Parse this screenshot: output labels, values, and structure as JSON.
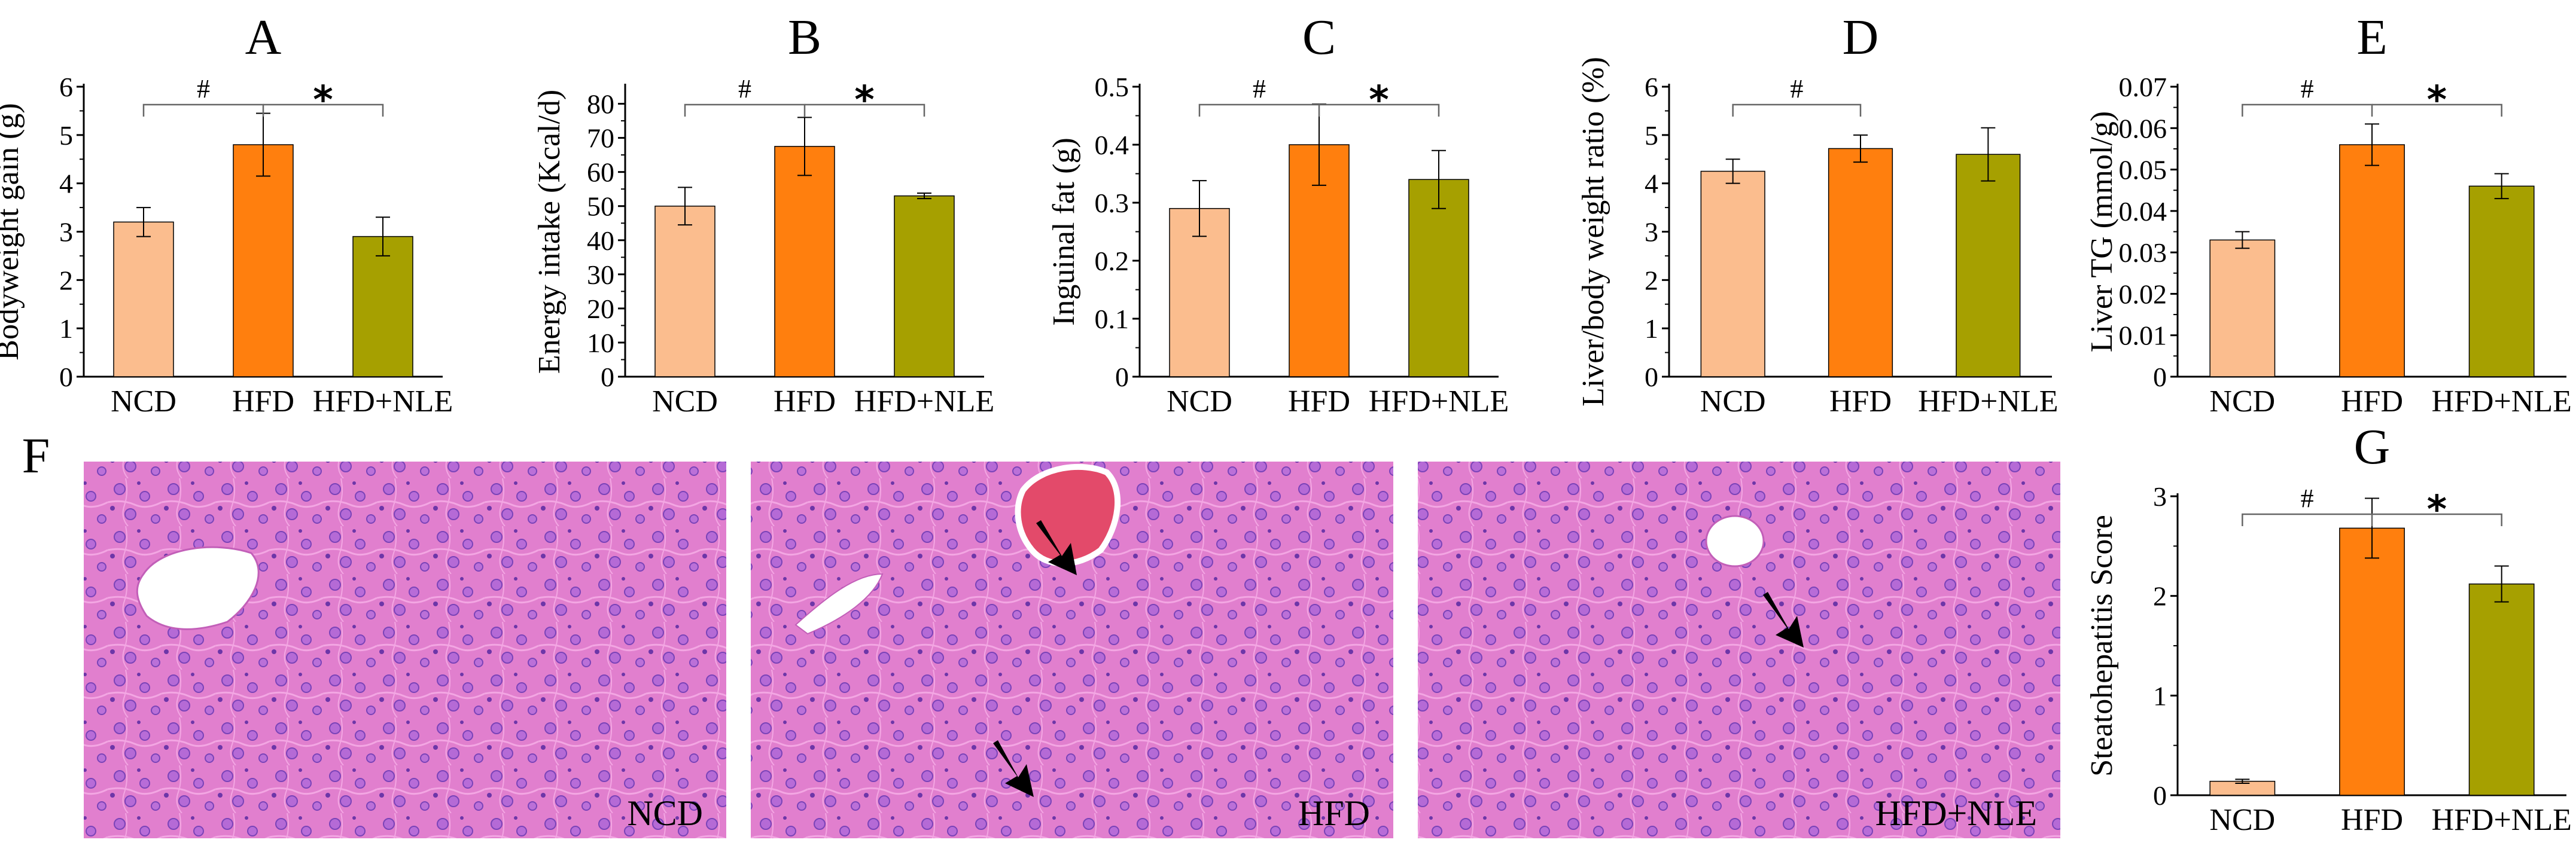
{
  "colors": {
    "NCD": "#fbbd8e",
    "HFD": "#ff7f0e",
    "HFD+NLE": "#a6a000",
    "axis": "#000000",
    "bracket": "#666666",
    "tissue": "#e47fd0"
  },
  "micrographs": [
    {
      "letter": "F",
      "label": "NCD"
    },
    {
      "label": "HFD"
    },
    {
      "label": "HFD+NLE"
    }
  ],
  "chart_data": [
    {
      "type": "bar",
      "letter": "A",
      "ylabel": "Bodyweight gain (g)",
      "categories": [
        "NCD",
        "HFD",
        "HFD+NLE"
      ],
      "values": [
        3.2,
        4.8,
        2.9
      ],
      "errors": [
        0.3,
        0.65,
        0.4
      ],
      "ylim": [
        0,
        6
      ],
      "yticks": [
        "0",
        "1",
        "2",
        "3",
        "4",
        "5",
        "6"
      ],
      "significance": {
        "hash": "#",
        "star": "*"
      }
    },
    {
      "type": "bar",
      "letter": "B",
      "ylabel": "Energy intake (Kcal/d)",
      "categories": [
        "NCD",
        "HFD",
        "HFD+NLE"
      ],
      "values": [
        50,
        67.5,
        53
      ],
      "errors": [
        5.5,
        8.5,
        0.8
      ],
      "ylim": [
        0,
        85
      ],
      "yticks": [
        "0",
        "10",
        "20",
        "30",
        "40",
        "50",
        "60",
        "70",
        "80"
      ],
      "significance": {
        "hash": "#",
        "star": "*"
      }
    },
    {
      "type": "bar",
      "letter": "C",
      "ylabel": "Inguinal fat (g)",
      "categories": [
        "NCD",
        "HFD",
        "HFD+NLE"
      ],
      "values": [
        0.29,
        0.4,
        0.34
      ],
      "errors": [
        0.048,
        0.07,
        0.05
      ],
      "ylim": [
        0,
        0.5
      ],
      "yticks": [
        "0",
        "0.1",
        "0.2",
        "0.3",
        "0.4",
        "0.5"
      ],
      "significance": {
        "hash": "#",
        "star": "*"
      }
    },
    {
      "type": "bar",
      "letter": "D",
      "ylabel": "Liver/body weight ratio (%)",
      "categories": [
        "NCD",
        "HFD",
        "HFD+NLE"
      ],
      "values": [
        4.25,
        4.72,
        4.6
      ],
      "errors": [
        0.25,
        0.28,
        0.55
      ],
      "ylim": [
        0,
        6
      ],
      "yticks": [
        "0",
        "1",
        "2",
        "3",
        "4",
        "5",
        "6"
      ],
      "significance": {
        "hash": "#"
      }
    },
    {
      "type": "bar",
      "letter": "E",
      "ylabel": "Liver TG (mmol/g)",
      "categories": [
        "NCD",
        "HFD",
        "HFD+NLE"
      ],
      "values": [
        0.033,
        0.056,
        0.046
      ],
      "errors": [
        0.002,
        0.005,
        0.003
      ],
      "ylim": [
        0,
        0.07
      ],
      "yticks": [
        "0",
        "0.01",
        "0.02",
        "0.03",
        "0.04",
        "0.05",
        "0.06",
        "0.07"
      ],
      "significance": {
        "hash": "#",
        "star": "*"
      }
    },
    {
      "type": "bar",
      "letter": "G",
      "ylabel": "Steatohepatitis Score",
      "categories": [
        "NCD",
        "HFD",
        "HFD+NLE"
      ],
      "values": [
        0.14,
        2.68,
        2.12
      ],
      "errors": [
        0.02,
        0.3,
        0.18
      ],
      "ylim": [
        0,
        3
      ],
      "yticks": [
        "0",
        "1",
        "2",
        "3"
      ],
      "significance": {
        "hash": "#",
        "star": "*"
      }
    }
  ]
}
